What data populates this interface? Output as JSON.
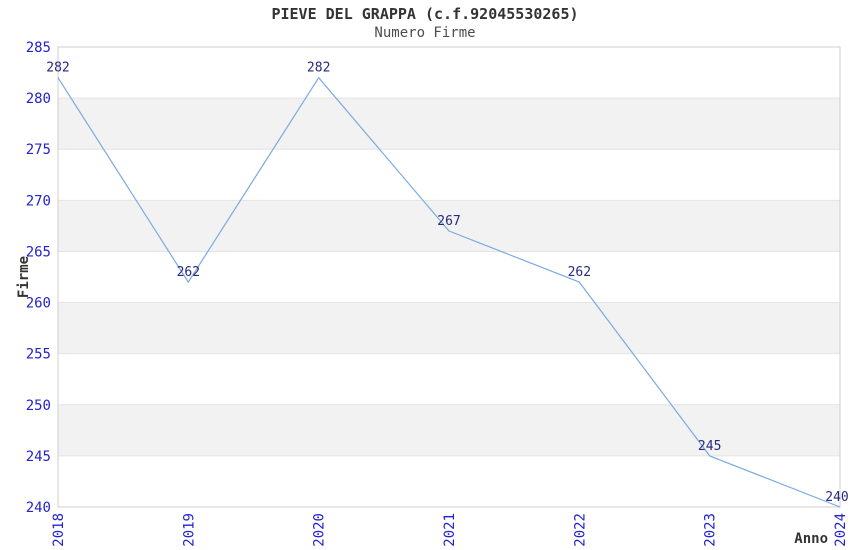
{
  "header": {
    "title": "PIEVE DEL GRAPPA (c.f.92045530265)",
    "subtitle": "Numero Firme"
  },
  "chart_data": {
    "type": "line",
    "title": "PIEVE DEL GRAPPA (c.f.92045530265)",
    "subtitle": "Numero Firme",
    "xlabel": "Anno",
    "ylabel": "Firme",
    "x": [
      2018,
      2019,
      2020,
      2021,
      2022,
      2023,
      2024
    ],
    "values": [
      282,
      262,
      282,
      267,
      262,
      245,
      240
    ],
    "point_labels": [
      "282",
      "262",
      "282",
      "267",
      "262",
      "245",
      "240"
    ],
    "ylim": [
      240,
      285
    ],
    "ytick_step": 5,
    "yticks": [
      240,
      245,
      250,
      255,
      260,
      265,
      270,
      275,
      280,
      285
    ],
    "grid": "horizontal-alternating-bands",
    "legend": "none",
    "colors": {
      "line": "#7aaade",
      "tick_label": "#2323cc",
      "point_label": "#28287d",
      "band_gray": "#f2f2f2",
      "band_white": "#ffffff",
      "grid_line": "#e4e4e4",
      "frame": "#cfcfcf",
      "title": "#333333",
      "subtitle": "#4d4d4d",
      "axis_label": "#333333",
      "background": "#ffffff"
    }
  }
}
